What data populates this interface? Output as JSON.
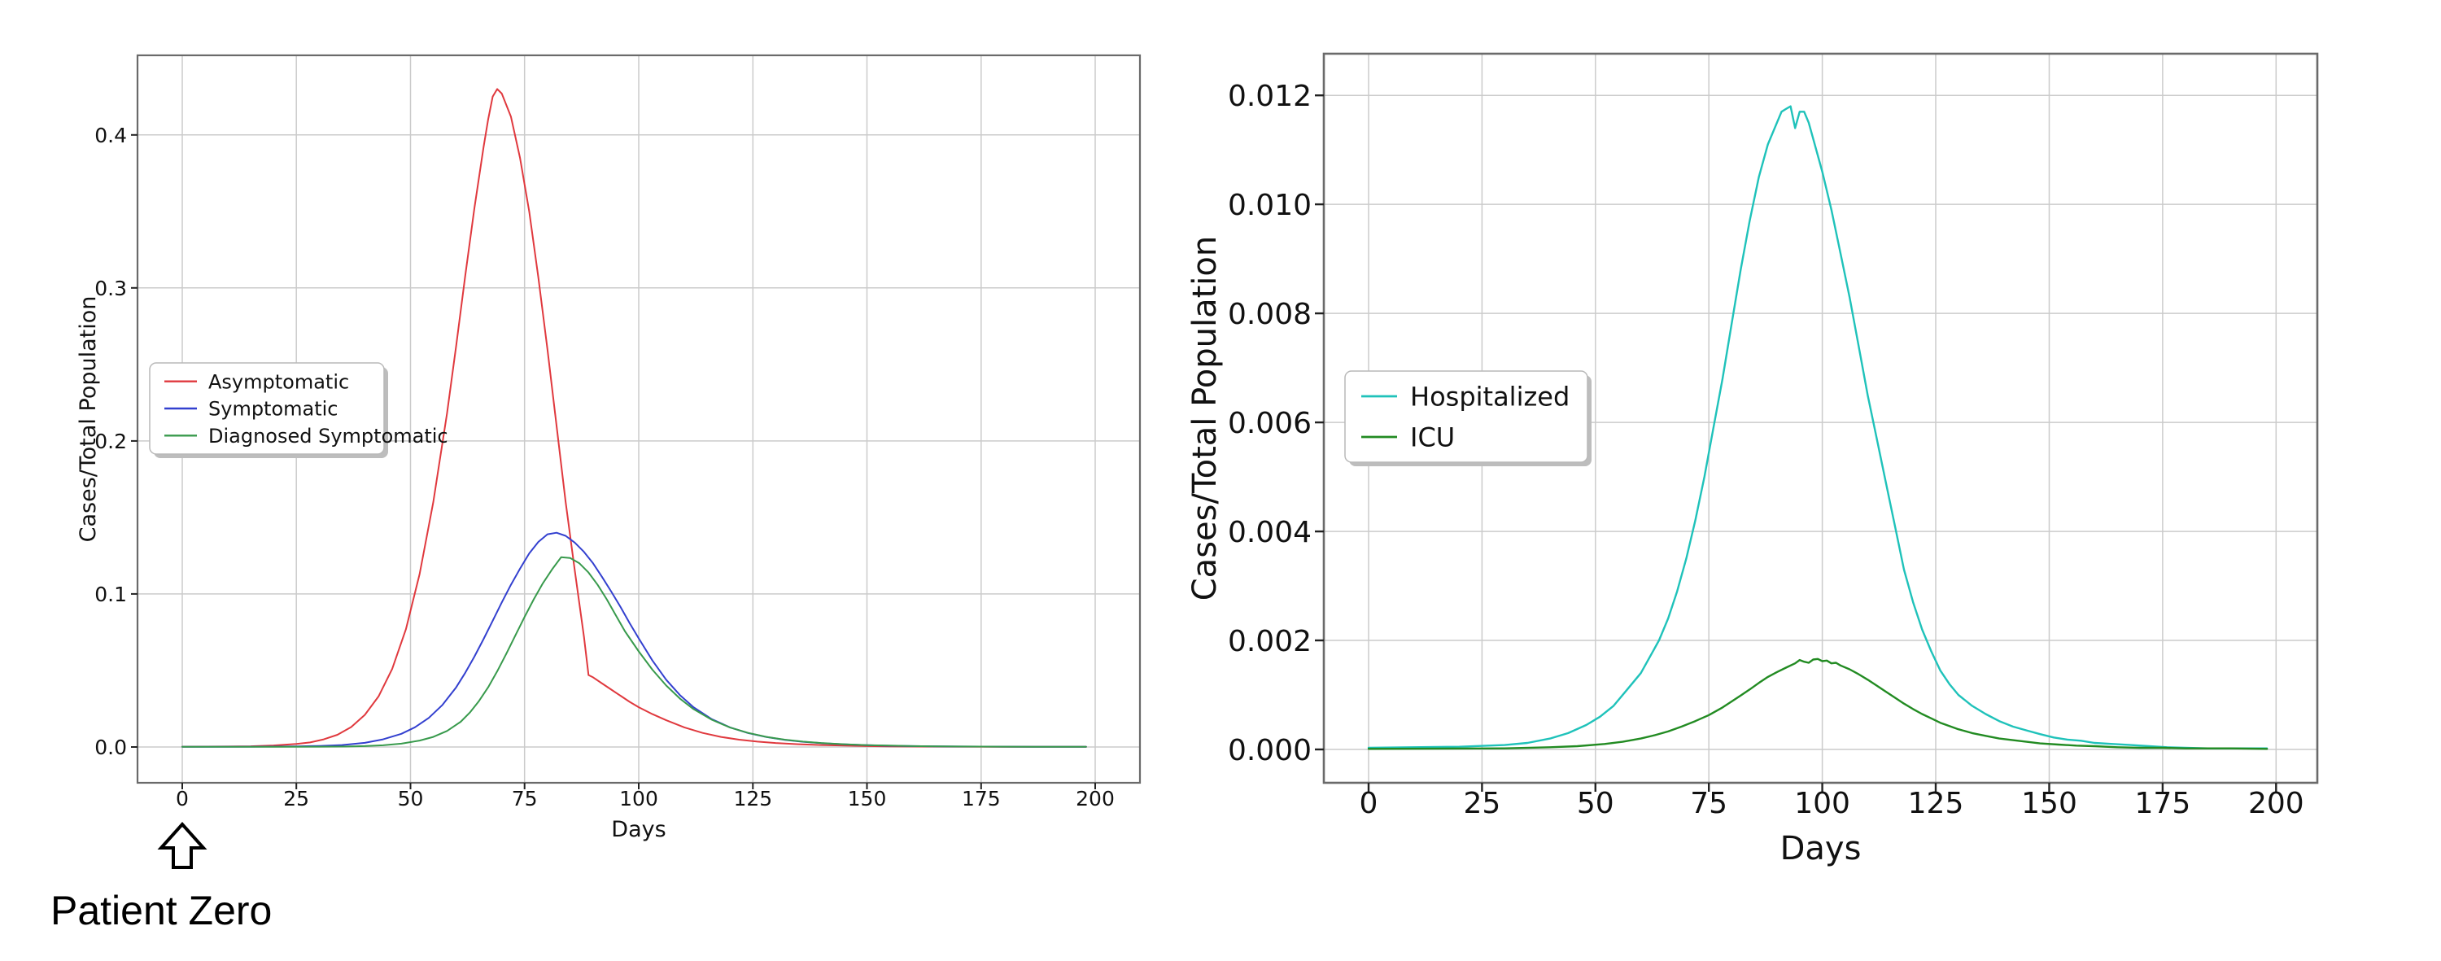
{
  "annotation": {
    "label": "Patient Zero"
  },
  "colors": {
    "asymptomatic": "#e0393e",
    "symptomatic": "#3340cf",
    "diagnosed": "#389a4c",
    "hospitalized": "#1fc2ba",
    "icu": "#228b22",
    "grid": "#cbcbcb",
    "spine": "#6a6a6a",
    "text": "#111111"
  },
  "chart_data": [
    {
      "type": "line",
      "title": "",
      "xlabel": "Days",
      "ylabel": "Cases/Total Population",
      "grid": true,
      "legend_position": "center-left",
      "xlim": [
        -9.8,
        209.8
      ],
      "ylim": [
        -0.0234,
        0.452
      ],
      "xticks": [
        0,
        25,
        50,
        75,
        100,
        125,
        150,
        175,
        200
      ],
      "xtick_labels": [
        "0",
        "25",
        "50",
        "75",
        "100",
        "125",
        "150",
        "175",
        "200"
      ],
      "yticks": [
        0.0,
        0.1,
        0.2,
        0.3,
        0.4
      ],
      "ytick_labels": [
        "0.0",
        "0.1",
        "0.2",
        "0.3",
        "0.4"
      ],
      "series": [
        {
          "name": "Asymptomatic",
          "color": "#e0393e",
          "x": [
            0,
            10,
            15,
            20,
            25,
            28,
            31,
            34,
            37,
            40,
            43,
            46,
            49,
            52,
            55,
            58,
            60,
            62,
            64,
            66,
            67,
            68,
            69,
            70,
            72,
            74,
            76,
            78,
            80,
            82,
            84,
            86,
            88,
            89,
            90,
            92,
            94,
            96,
            98,
            100,
            103,
            106,
            110,
            114,
            118,
            122,
            126,
            130,
            135,
            140,
            145,
            150,
            155,
            160,
            170,
            180,
            190,
            198
          ],
          "y": [
            0.0002,
            0.0003,
            0.0005,
            0.001,
            0.002,
            0.003,
            0.005,
            0.008,
            0.013,
            0.021,
            0.033,
            0.051,
            0.077,
            0.113,
            0.16,
            0.218,
            0.262,
            0.308,
            0.352,
            0.392,
            0.41,
            0.425,
            0.43,
            0.427,
            0.412,
            0.385,
            0.35,
            0.307,
            0.26,
            0.21,
            0.16,
            0.115,
            0.072,
            0.047,
            0.0455,
            0.0415,
            0.0375,
            0.0335,
            0.0295,
            0.026,
            0.0215,
            0.0175,
            0.0128,
            0.0092,
            0.0066,
            0.0048,
            0.0035,
            0.0026,
            0.0018,
            0.0013,
            0.0009,
            0.0006,
            0.0004,
            0.0003,
            0.0002,
            0.0001,
            0.0001,
            0.0001
          ]
        },
        {
          "name": "Symptomatic",
          "color": "#3340cf",
          "x": [
            0,
            15,
            25,
            30,
            35,
            40,
            44,
            48,
            51,
            54,
            57,
            60,
            62,
            64,
            66,
            68,
            70,
            72,
            74,
            76,
            78,
            80,
            82,
            84,
            86,
            88,
            90,
            92,
            94,
            96,
            98,
            100,
            103,
            106,
            109,
            112,
            116,
            120,
            124,
            128,
            132,
            136,
            140,
            145,
            150,
            155,
            160,
            170,
            180,
            190,
            198
          ],
          "y": [
            0.0001,
            0.0002,
            0.0004,
            0.0007,
            0.0013,
            0.0027,
            0.005,
            0.0086,
            0.0129,
            0.019,
            0.0275,
            0.039,
            0.0485,
            0.059,
            0.0705,
            0.0825,
            0.0945,
            0.106,
            0.1165,
            0.1265,
            0.134,
            0.139,
            0.14,
            0.138,
            0.1335,
            0.1275,
            0.12,
            0.111,
            0.1015,
            0.0915,
            0.081,
            0.071,
            0.0565,
            0.044,
            0.034,
            0.026,
            0.0182,
            0.0128,
            0.0091,
            0.0065,
            0.0047,
            0.0034,
            0.0025,
            0.0017,
            0.0012,
            0.0008,
            0.0006,
            0.0003,
            0.0002,
            0.0001,
            0.0001
          ]
        },
        {
          "name": "Diagnosed Symptomatic",
          "color": "#389a4c",
          "x": [
            0,
            20,
            30,
            36,
            40,
            44,
            48,
            52,
            55,
            58,
            61,
            63,
            65,
            67,
            69,
            71,
            73,
            75,
            77,
            79,
            81,
            83,
            85,
            87,
            89,
            91,
            93,
            95,
            97,
            100,
            103,
            106,
            109,
            112,
            116,
            120,
            124,
            128,
            132,
            136,
            140,
            145,
            150,
            155,
            160,
            170,
            180,
            190,
            198
          ],
          "y": [
            0.0001,
            0.0001,
            0.0002,
            0.0003,
            0.0006,
            0.0011,
            0.0022,
            0.0042,
            0.0066,
            0.0105,
            0.0165,
            0.0225,
            0.03,
            0.039,
            0.0495,
            0.061,
            0.073,
            0.085,
            0.0965,
            0.107,
            0.116,
            0.124,
            0.1235,
            0.12,
            0.114,
            0.106,
            0.0965,
            0.086,
            0.0755,
            0.0625,
            0.0505,
            0.0402,
            0.0317,
            0.0248,
            0.0178,
            0.0127,
            0.0092,
            0.0066,
            0.0048,
            0.0035,
            0.0026,
            0.0018,
            0.0012,
            0.0009,
            0.0006,
            0.0003,
            0.0002,
            0.0001,
            0.0001
          ]
        }
      ]
    },
    {
      "type": "line",
      "title": "",
      "xlabel": "Days",
      "ylabel": "Cases/Total Population",
      "grid": true,
      "legend_position": "center-left",
      "xlim": [
        -9.87,
        209.1
      ],
      "ylim": [
        -0.000612,
        0.012764
      ],
      "xticks": [
        0,
        25,
        50,
        75,
        100,
        125,
        150,
        175,
        200
      ],
      "xtick_labels": [
        "0",
        "25",
        "50",
        "75",
        "100",
        "125",
        "150",
        "175",
        "200"
      ],
      "yticks": [
        0.0,
        0.002,
        0.004,
        0.006,
        0.008,
        0.01,
        0.012
      ],
      "ytick_labels": [
        "0.000",
        "0.002",
        "0.004",
        "0.006",
        "0.008",
        "0.010",
        "0.012"
      ],
      "series": [
        {
          "name": "Hospitalized",
          "color": "#1fc2ba",
          "x": [
            0,
            20,
            30,
            35,
            40,
            44,
            48,
            51,
            54,
            57,
            60,
            62,
            64,
            66,
            68,
            70,
            72,
            74,
            76,
            78,
            80,
            82,
            84,
            86,
            88,
            90,
            91,
            92,
            93,
            94,
            95,
            96,
            97,
            98,
            100,
            102,
            104,
            106,
            108,
            110,
            112,
            114,
            116,
            118,
            120,
            122,
            124,
            126,
            128,
            130,
            133,
            136,
            139,
            142,
            145,
            148,
            151,
            154,
            157,
            160,
            164,
            168,
            172,
            176,
            180,
            185,
            190,
            198
          ],
          "y": [
            3e-05,
            5e-05,
            8e-05,
            0.00012,
            0.0002,
            0.0003,
            0.00045,
            0.0006,
            0.0008,
            0.0011,
            0.0014,
            0.0017,
            0.002,
            0.0024,
            0.0029,
            0.0035,
            0.0042,
            0.005,
            0.0059,
            0.0068,
            0.0078,
            0.0088,
            0.0097,
            0.0105,
            0.0111,
            0.0115,
            0.0117,
            0.01175,
            0.0118,
            0.0114,
            0.0117,
            0.0117,
            0.0115,
            0.0112,
            0.0106,
            0.0099,
            0.0091,
            0.0083,
            0.0074,
            0.0065,
            0.0057,
            0.0049,
            0.0041,
            0.0033,
            0.0027,
            0.0022,
            0.0018,
            0.00145,
            0.0012,
            0.001,
            0.0008,
            0.00065,
            0.00052,
            0.00042,
            0.00035,
            0.00028,
            0.00022,
            0.00018,
            0.00016,
            0.00012,
            0.0001,
            8e-05,
            6e-05,
            4e-05,
            3e-05,
            2e-05,
            2e-05,
            2e-05
          ]
        },
        {
          "name": "ICU",
          "color": "#228b22",
          "x": [
            0,
            30,
            40,
            46,
            52,
            56,
            60,
            63,
            66,
            69,
            72,
            75,
            78,
            80,
            82,
            84,
            86,
            88,
            90,
            92,
            94,
            95,
            96,
            97,
            98,
            99,
            100,
            101,
            102,
            103,
            104,
            106,
            108,
            110,
            112,
            114,
            116,
            118,
            120,
            122,
            124,
            126,
            128,
            130,
            133,
            136,
            139,
            142,
            145,
            148,
            152,
            156,
            160,
            165,
            170,
            175,
            180,
            190,
            198
          ],
          "y": [
            1e-05,
            2e-05,
            4e-05,
            6e-05,
            0.0001,
            0.00014,
            0.0002,
            0.00026,
            0.00033,
            0.00042,
            0.00052,
            0.00063,
            0.00077,
            0.00088,
            0.00099,
            0.0011,
            0.00122,
            0.00133,
            0.00142,
            0.0015,
            0.00158,
            0.00164,
            0.00161,
            0.00159,
            0.00165,
            0.00166,
            0.00162,
            0.00163,
            0.00158,
            0.00159,
            0.00154,
            0.00147,
            0.00138,
            0.00128,
            0.00117,
            0.00106,
            0.00095,
            0.00084,
            0.00074,
            0.00065,
            0.00057,
            0.00049,
            0.00043,
            0.00037,
            0.0003,
            0.00025,
            0.0002,
            0.00017,
            0.00014,
            0.00011,
            9e-05,
            7e-05,
            6e-05,
            4e-05,
            3e-05,
            3e-05,
            2e-05,
            2e-05,
            1e-05
          ]
        }
      ]
    }
  ]
}
